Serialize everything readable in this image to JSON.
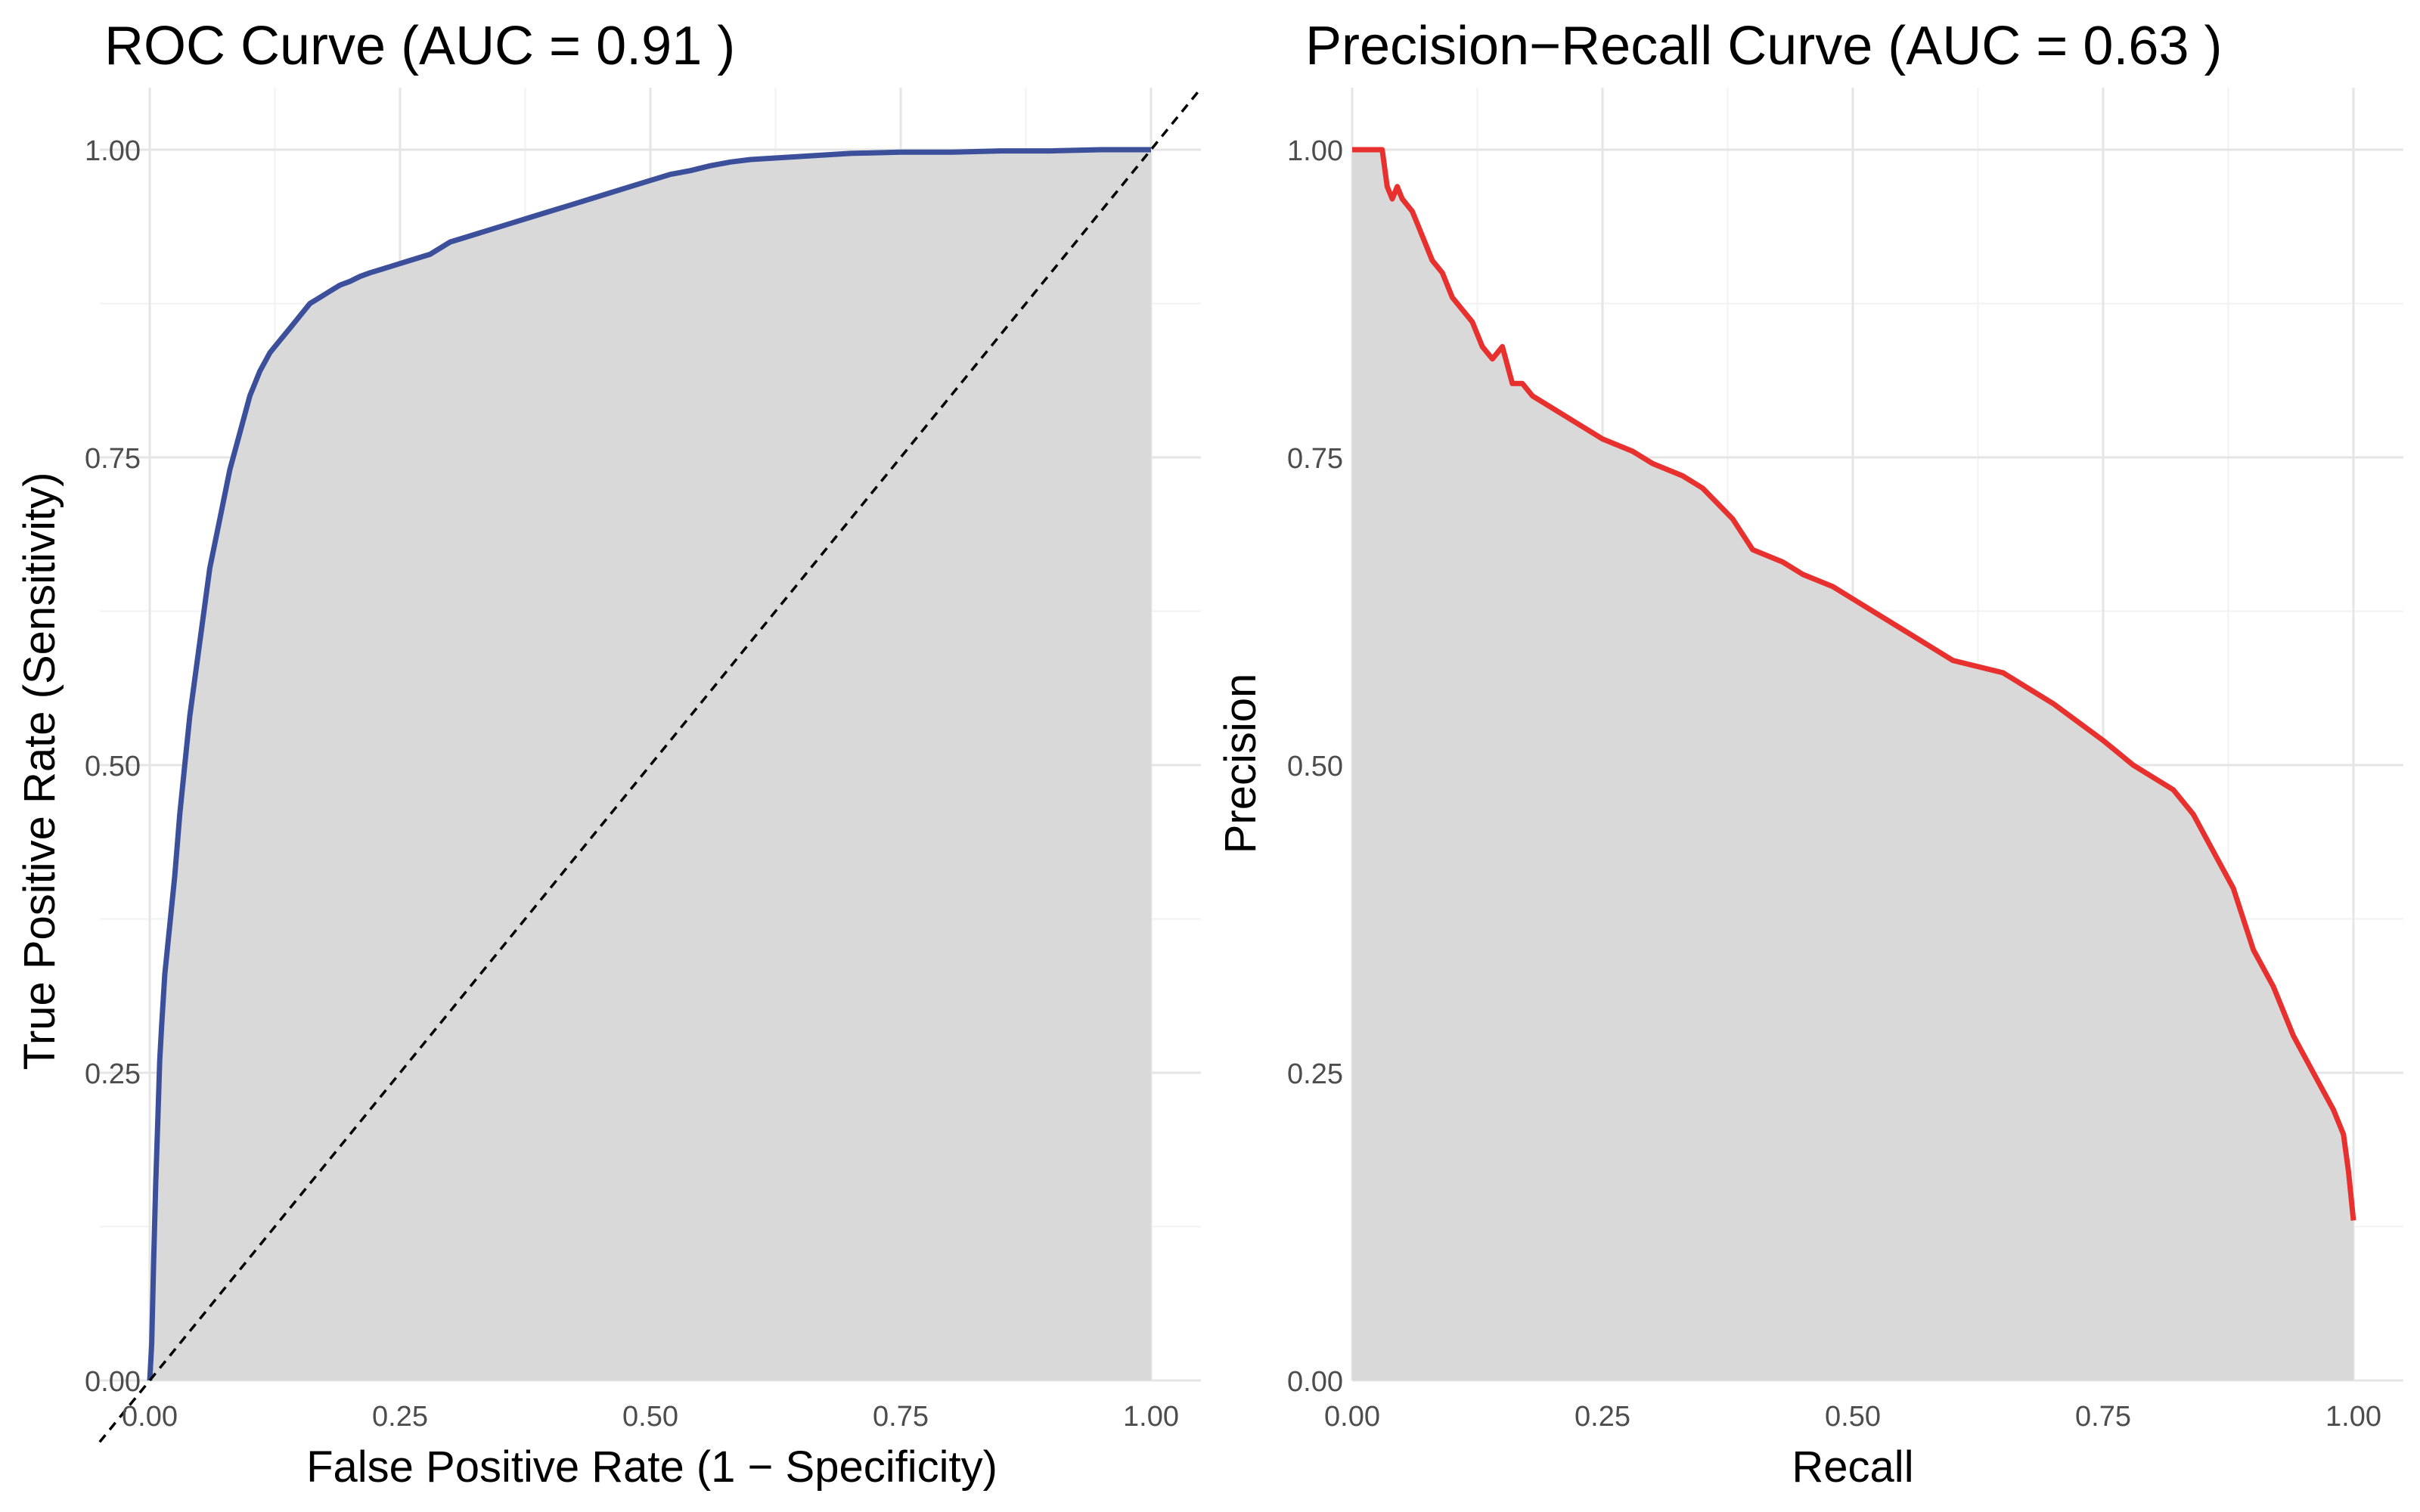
{
  "chart_data": [
    {
      "type": "line",
      "title": "ROC Curve (AUC = 0.91 )",
      "xlabel": "False Positive Rate (1 − Specificity)",
      "ylabel": "True Positive Rate (Sensitivity)",
      "xlim": [
        0,
        1
      ],
      "ylim": [
        0,
        1
      ],
      "xticks": [
        "0.00",
        "0.25",
        "0.50",
        "0.75",
        "1.00"
      ],
      "yticks": [
        "0.00",
        "0.25",
        "0.50",
        "0.75",
        "1.00"
      ],
      "grid": true,
      "fill_under": true,
      "line_color": "#3b4f9a",
      "fill_color": "#d9d9d9",
      "reference_line": {
        "x": [
          0,
          1
        ],
        "y": [
          0,
          1
        ],
        "style": "dashed",
        "color": "#000000"
      },
      "series": [
        {
          "x": [
            0,
            0.002,
            0.004,
            0.006,
            0.008,
            0.01,
            0.012,
            0.015,
            0.02,
            0.025,
            0.03,
            0.035,
            0.04,
            0.045,
            0.05,
            0.055,
            0.06,
            0.07,
            0.08,
            0.09,
            0.1,
            0.11,
            0.12,
            0.13,
            0.14,
            0.15,
            0.16,
            0.17,
            0.18,
            0.19,
            0.2,
            0.21,
            0.22,
            0.24,
            0.26,
            0.28,
            0.3,
            0.32,
            0.34,
            0.36,
            0.38,
            0.4,
            0.42,
            0.44,
            0.46,
            0.48,
            0.5,
            0.52,
            0.54,
            0.56,
            0.58,
            0.6,
            0.62,
            0.64,
            0.66,
            0.68,
            0.7,
            0.75,
            0.8,
            0.85,
            0.9,
            0.95,
            1.0
          ],
          "y": [
            0,
            0.03,
            0.1,
            0.16,
            0.21,
            0.26,
            0.29,
            0.33,
            0.37,
            0.41,
            0.46,
            0.5,
            0.54,
            0.57,
            0.6,
            0.63,
            0.66,
            0.7,
            0.74,
            0.77,
            0.8,
            0.82,
            0.835,
            0.845,
            0.855,
            0.865,
            0.875,
            0.88,
            0.885,
            0.89,
            0.893,
            0.897,
            0.9,
            0.905,
            0.91,
            0.915,
            0.925,
            0.93,
            0.935,
            0.94,
            0.945,
            0.95,
            0.955,
            0.96,
            0.965,
            0.97,
            0.975,
            0.98,
            0.983,
            0.987,
            0.99,
            0.992,
            0.993,
            0.994,
            0.995,
            0.996,
            0.997,
            0.998,
            0.998,
            0.999,
            0.999,
            1.0,
            1.0
          ]
        }
      ]
    },
    {
      "type": "line",
      "title": "Precision−Recall Curve (AUC = 0.63 )",
      "xlabel": "Recall",
      "ylabel": "Precision",
      "xlim": [
        0,
        1
      ],
      "ylim": [
        0,
        1
      ],
      "xticks": [
        "0.00",
        "0.25",
        "0.50",
        "0.75",
        "1.00"
      ],
      "yticks": [
        "0.00",
        "0.25",
        "0.50",
        "0.75",
        "1.00"
      ],
      "grid": true,
      "fill_under": true,
      "line_color": "#e8312e",
      "fill_color": "#d9d9d9",
      "series": [
        {
          "x": [
            0,
            0.03,
            0.035,
            0.04,
            0.045,
            0.05,
            0.06,
            0.065,
            0.07,
            0.08,
            0.09,
            0.1,
            0.11,
            0.12,
            0.13,
            0.14,
            0.15,
            0.16,
            0.17,
            0.18,
            0.2,
            0.22,
            0.25,
            0.28,
            0.3,
            0.33,
            0.35,
            0.38,
            0.4,
            0.43,
            0.45,
            0.48,
            0.5,
            0.53,
            0.55,
            0.58,
            0.6,
            0.65,
            0.7,
            0.75,
            0.78,
            0.8,
            0.82,
            0.84,
            0.86,
            0.88,
            0.9,
            0.92,
            0.94,
            0.96,
            0.98,
            0.99,
            0.995,
            1.0
          ],
          "y": [
            1.0,
            1.0,
            0.97,
            0.96,
            0.97,
            0.96,
            0.95,
            0.94,
            0.93,
            0.91,
            0.9,
            0.88,
            0.87,
            0.86,
            0.84,
            0.83,
            0.84,
            0.81,
            0.81,
            0.8,
            0.79,
            0.78,
            0.765,
            0.755,
            0.745,
            0.735,
            0.725,
            0.7,
            0.675,
            0.665,
            0.655,
            0.645,
            0.635,
            0.62,
            0.61,
            0.595,
            0.585,
            0.575,
            0.55,
            0.52,
            0.5,
            0.49,
            0.48,
            0.46,
            0.43,
            0.4,
            0.35,
            0.32,
            0.28,
            0.25,
            0.22,
            0.2,
            0.17,
            0.13
          ]
        }
      ]
    }
  ]
}
